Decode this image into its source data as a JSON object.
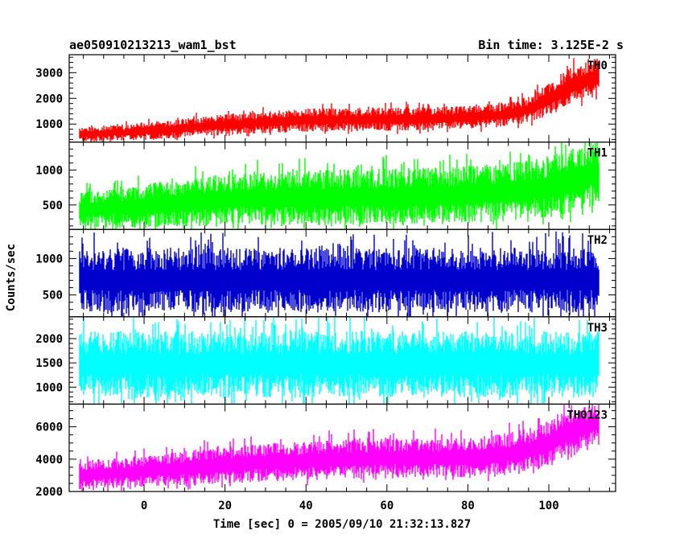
{
  "chart_data": {
    "type": "line",
    "title_left": "ae050910213213_wam1_bst",
    "title_right": "Bin time: 3.125E-2 s",
    "ylabel": "Counts/sec",
    "xlabel": "Time [sec] 0 = 2005/09/10 21:32:13.827",
    "xlim": [
      -18.5,
      116.5
    ],
    "xticks": [
      0,
      20,
      40,
      60,
      80,
      100
    ],
    "x_minor_step": 5,
    "data_x_range": [
      -16,
      112.4
    ],
    "bin_time": 0.03125,
    "panels": [
      {
        "name": "TH0",
        "color": "#ff0000",
        "ylim": [
          300,
          3700
        ],
        "yticks": [
          1000,
          2000,
          3000
        ],
        "y_minor_step": 200,
        "envelope": {
          "x": [
            -16,
            0,
            20,
            40,
            60,
            80,
            90,
            95,
            100,
            105,
            110,
            112.4
          ],
          "low": [
            300,
            380,
            580,
            700,
            730,
            800,
            900,
            1050,
            1300,
            1750,
            2000,
            2100
          ],
          "high": [
            880,
            1050,
            1380,
            1600,
            1650,
            1700,
            1850,
            2100,
            2600,
            3200,
            3500,
            3600
          ]
        }
      },
      {
        "name": "TH1",
        "color": "#00ff00",
        "ylim": [
          150,
          1400
        ],
        "yticks": [
          500,
          1000
        ],
        "y_minor_step": 100,
        "envelope": {
          "x": [
            -16,
            0,
            20,
            40,
            60,
            80,
            90,
            100,
            105,
            110,
            112.4
          ],
          "low": [
            150,
            170,
            200,
            210,
            220,
            240,
            270,
            320,
            380,
            470,
            520
          ],
          "high": [
            700,
            800,
            950,
            1000,
            1020,
            1060,
            1100,
            1200,
            1300,
            1380,
            1400
          ]
        }
      },
      {
        "name": "TH2",
        "color": "#0000cd",
        "ylim": [
          200,
          1400
        ],
        "yticks": [
          500,
          1000
        ],
        "y_minor_step": 100,
        "envelope": {
          "x": [
            -16,
            112.4
          ],
          "low": [
            260,
            260
          ],
          "high": [
            1150,
            1150
          ]
        }
      },
      {
        "name": "TH3",
        "color": "#00ffff",
        "ylim": [
          650,
          2450
        ],
        "yticks": [
          1000,
          1500,
          2000
        ],
        "y_minor_step": 100,
        "envelope": {
          "x": [
            -16,
            112.4
          ],
          "low": [
            780,
            780
          ],
          "high": [
            2150,
            2150
          ]
        }
      },
      {
        "name": "TH0123",
        "color": "#ff00ff",
        "ylim": [
          2000,
          7400
        ],
        "yticks": [
          2000,
          4000,
          6000
        ],
        "y_minor_step": 500,
        "envelope": {
          "x": [
            -16,
            0,
            20,
            40,
            60,
            80,
            90,
            95,
            100,
            105,
            110,
            112.4
          ],
          "low": [
            2100,
            2300,
            2500,
            2700,
            2800,
            2900,
            3000,
            3200,
            3600,
            4300,
            4800,
            5000
          ],
          "high": [
            3900,
            4200,
            4800,
            5100,
            5300,
            5300,
            5600,
            5900,
            6400,
            7000,
            7300,
            7400
          ]
        }
      }
    ]
  }
}
